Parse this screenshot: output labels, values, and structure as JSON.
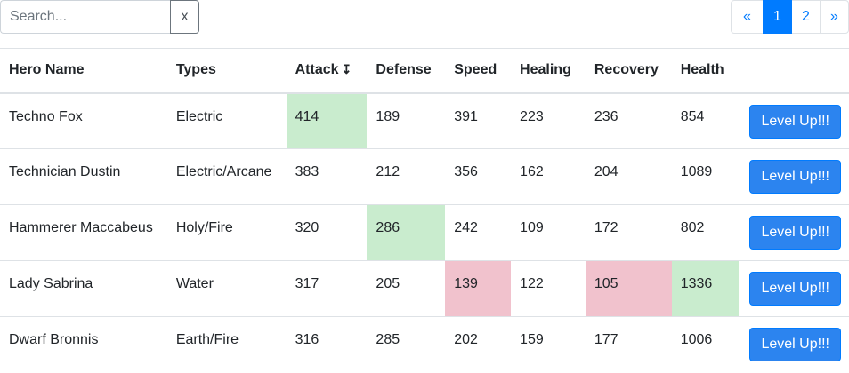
{
  "search": {
    "placeholder": "Search...",
    "value": "",
    "clear_label": "x"
  },
  "pagination": {
    "prev": "«",
    "pages": [
      "1",
      "2"
    ],
    "active": "1",
    "next": "»"
  },
  "table": {
    "headers": {
      "name": "Hero Name",
      "types": "Types",
      "attack": "Attack",
      "attack_sort_icon": "↧",
      "defense": "Defense",
      "speed": "Speed",
      "healing": "Healing",
      "recovery": "Recovery",
      "health": "Health"
    },
    "button_label": "Level Up!!!",
    "rows": [
      {
        "name": "Techno Fox",
        "types": "Electric",
        "attack": "414",
        "defense": "189",
        "speed": "391",
        "healing": "223",
        "recovery": "236",
        "health": "854"
      },
      {
        "name": "Technician Dustin",
        "types": "Electric/Arcane",
        "attack": "383",
        "defense": "212",
        "speed": "356",
        "healing": "162",
        "recovery": "204",
        "health": "1089"
      },
      {
        "name": "Hammerer Maccabeus",
        "types": "Holy/Fire",
        "attack": "320",
        "defense": "286",
        "speed": "242",
        "healing": "109",
        "recovery": "172",
        "health": "802"
      },
      {
        "name": "Lady Sabrina",
        "types": "Water",
        "attack": "317",
        "defense": "205",
        "speed": "139",
        "healing": "122",
        "recovery": "105",
        "health": "1336"
      },
      {
        "name": "Dwarf Bronnis",
        "types": "Earth/Fire",
        "attack": "316",
        "defense": "285",
        "speed": "202",
        "healing": "159",
        "recovery": "177",
        "health": "1006"
      }
    ]
  },
  "colors": {
    "primary": "#007bff",
    "button": "#2c84ef",
    "highlight_high": "#c9ecce",
    "highlight_low": "#f1c2cd"
  }
}
